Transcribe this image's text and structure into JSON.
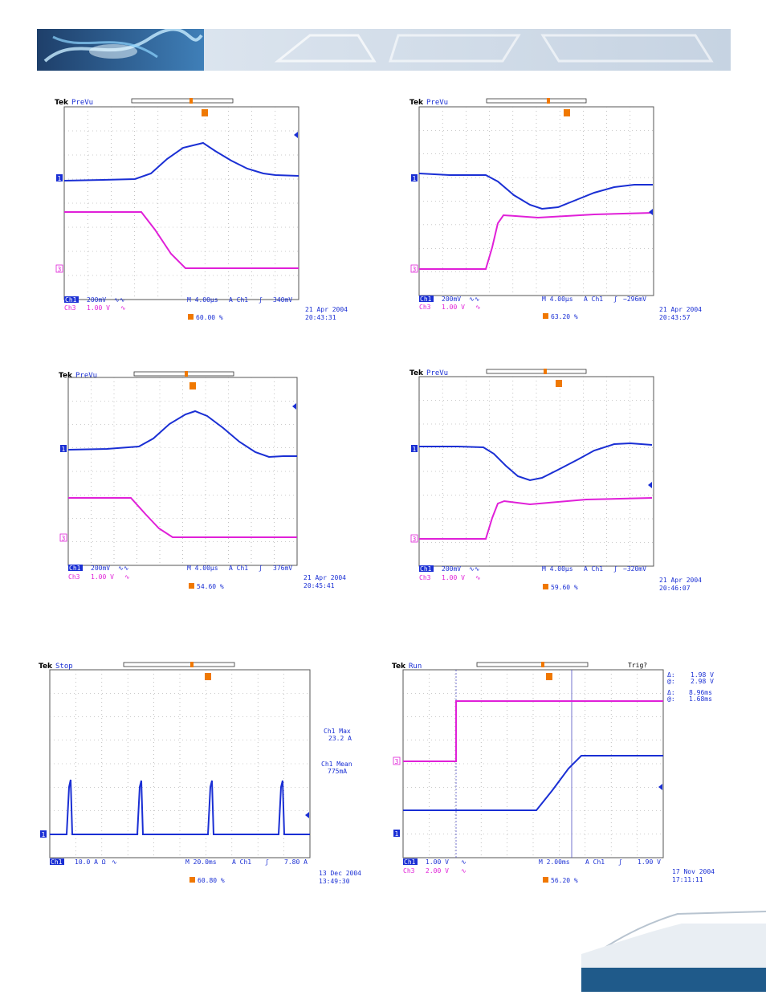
{
  "colors": {
    "ch1": "#1a2fd4",
    "ch3": "#e020d8",
    "trigger": "#f07800",
    "grid": "#888888",
    "banner": "#1f4f82",
    "footer": "#1f5a8a"
  },
  "scopes": [
    {
      "brand": "Tek",
      "mode": "PreVu",
      "ch1_label": "Ch1",
      "ch1_scale": "200mV",
      "ch1_coupling": "∿∿",
      "ch3_label": "Ch3",
      "ch3_scale": "1.00 V",
      "ch3_coupling": "∿",
      "timebase": "M 4.00µs",
      "trig_ch": "A  Ch1",
      "trig_slope": "ʃ",
      "trig_level": "340mV",
      "trig_pos": "60.00 %",
      "date": "21 Apr 2004",
      "time": "20:43:31",
      "ch1_marker": "1",
      "ch3_marker": "3"
    },
    {
      "brand": "Tek",
      "mode": "PreVu",
      "ch1_label": "Ch1",
      "ch1_scale": "200mV",
      "ch1_coupling": "∿∿",
      "ch3_label": "Ch3",
      "ch3_scale": "1.00 V",
      "ch3_coupling": "∿",
      "timebase": "M 4.00µs",
      "trig_ch": "A  Ch1",
      "trig_slope": "ʃ",
      "trig_level": "−296mV",
      "trig_pos": "63.20 %",
      "date": "21 Apr 2004",
      "time": "20:43:57",
      "ch1_marker": "1",
      "ch3_marker": "3"
    },
    {
      "brand": "Tek",
      "mode": "PreVu",
      "ch1_label": "Ch1",
      "ch1_scale": "200mV",
      "ch1_coupling": "∿∿",
      "ch3_label": "Ch3",
      "ch3_scale": "1.00 V",
      "ch3_coupling": "∿",
      "timebase": "M 4.00µs",
      "trig_ch": "A  Ch1",
      "trig_slope": "ʃ",
      "trig_level": "376mV",
      "trig_pos": "54.60 %",
      "date": "21 Apr 2004",
      "time": "20:45:41",
      "ch1_marker": "1",
      "ch3_marker": "3"
    },
    {
      "brand": "Tek",
      "mode": "PreVu",
      "ch1_label": "Ch1",
      "ch1_scale": "200mV",
      "ch1_coupling": "∿∿",
      "ch3_label": "Ch3",
      "ch3_scale": "1.00 V",
      "ch3_coupling": "∿",
      "timebase": "M 4.00µs",
      "trig_ch": "A  Ch1",
      "trig_slope": "ʃ",
      "trig_level": "−320mV",
      "trig_pos": "59.60 %",
      "date": "21 Apr 2004",
      "time": "20:46:07",
      "ch1_marker": "1",
      "ch3_marker": "3"
    },
    {
      "brand": "Tek",
      "mode": "Stop",
      "ch1_label": "Ch1",
      "ch1_scale": "10.0 A Ω",
      "ch1_coupling": "∿",
      "timebase": "M 20.0ms",
      "trig_ch": "A  Ch1",
      "trig_slope": "ʃ",
      "trig_level": "7.80 A",
      "trig_pos": "60.80 %",
      "date": "13 Dec 2004",
      "time": "13:49:30",
      "meas1_title": "Ch1 Max",
      "meas1_value": "23.2 A",
      "meas2_title": "Ch1 Mean",
      "meas2_value": "775mA",
      "ch1_marker": "1"
    },
    {
      "brand": "Tek",
      "mode": "Run",
      "status": "Trig?",
      "ch1_label": "Ch1",
      "ch1_scale": "1.00 V",
      "ch1_coupling": "∿",
      "ch3_label": "Ch3",
      "ch3_scale": "2.00 V",
      "ch3_coupling": "∿",
      "timebase": "M 2.00ms",
      "trig_ch": "A  Ch1",
      "trig_slope": "ʃ",
      "trig_level": "1.90 V",
      "trig_pos": "56.20 %",
      "date": "17 Nov 2004",
      "time": "17:11:11",
      "cursor_dv_label": "Δ:",
      "cursor_dv": "1.98 V",
      "cursor_av_label": "@:",
      "cursor_av": "2.98 V",
      "cursor_dt_label": "Δ:",
      "cursor_dt": "8.96ms",
      "cursor_at_label": "@:",
      "cursor_at": "1.68ms",
      "ch1_marker": "1",
      "ch3_marker": "3"
    }
  ]
}
